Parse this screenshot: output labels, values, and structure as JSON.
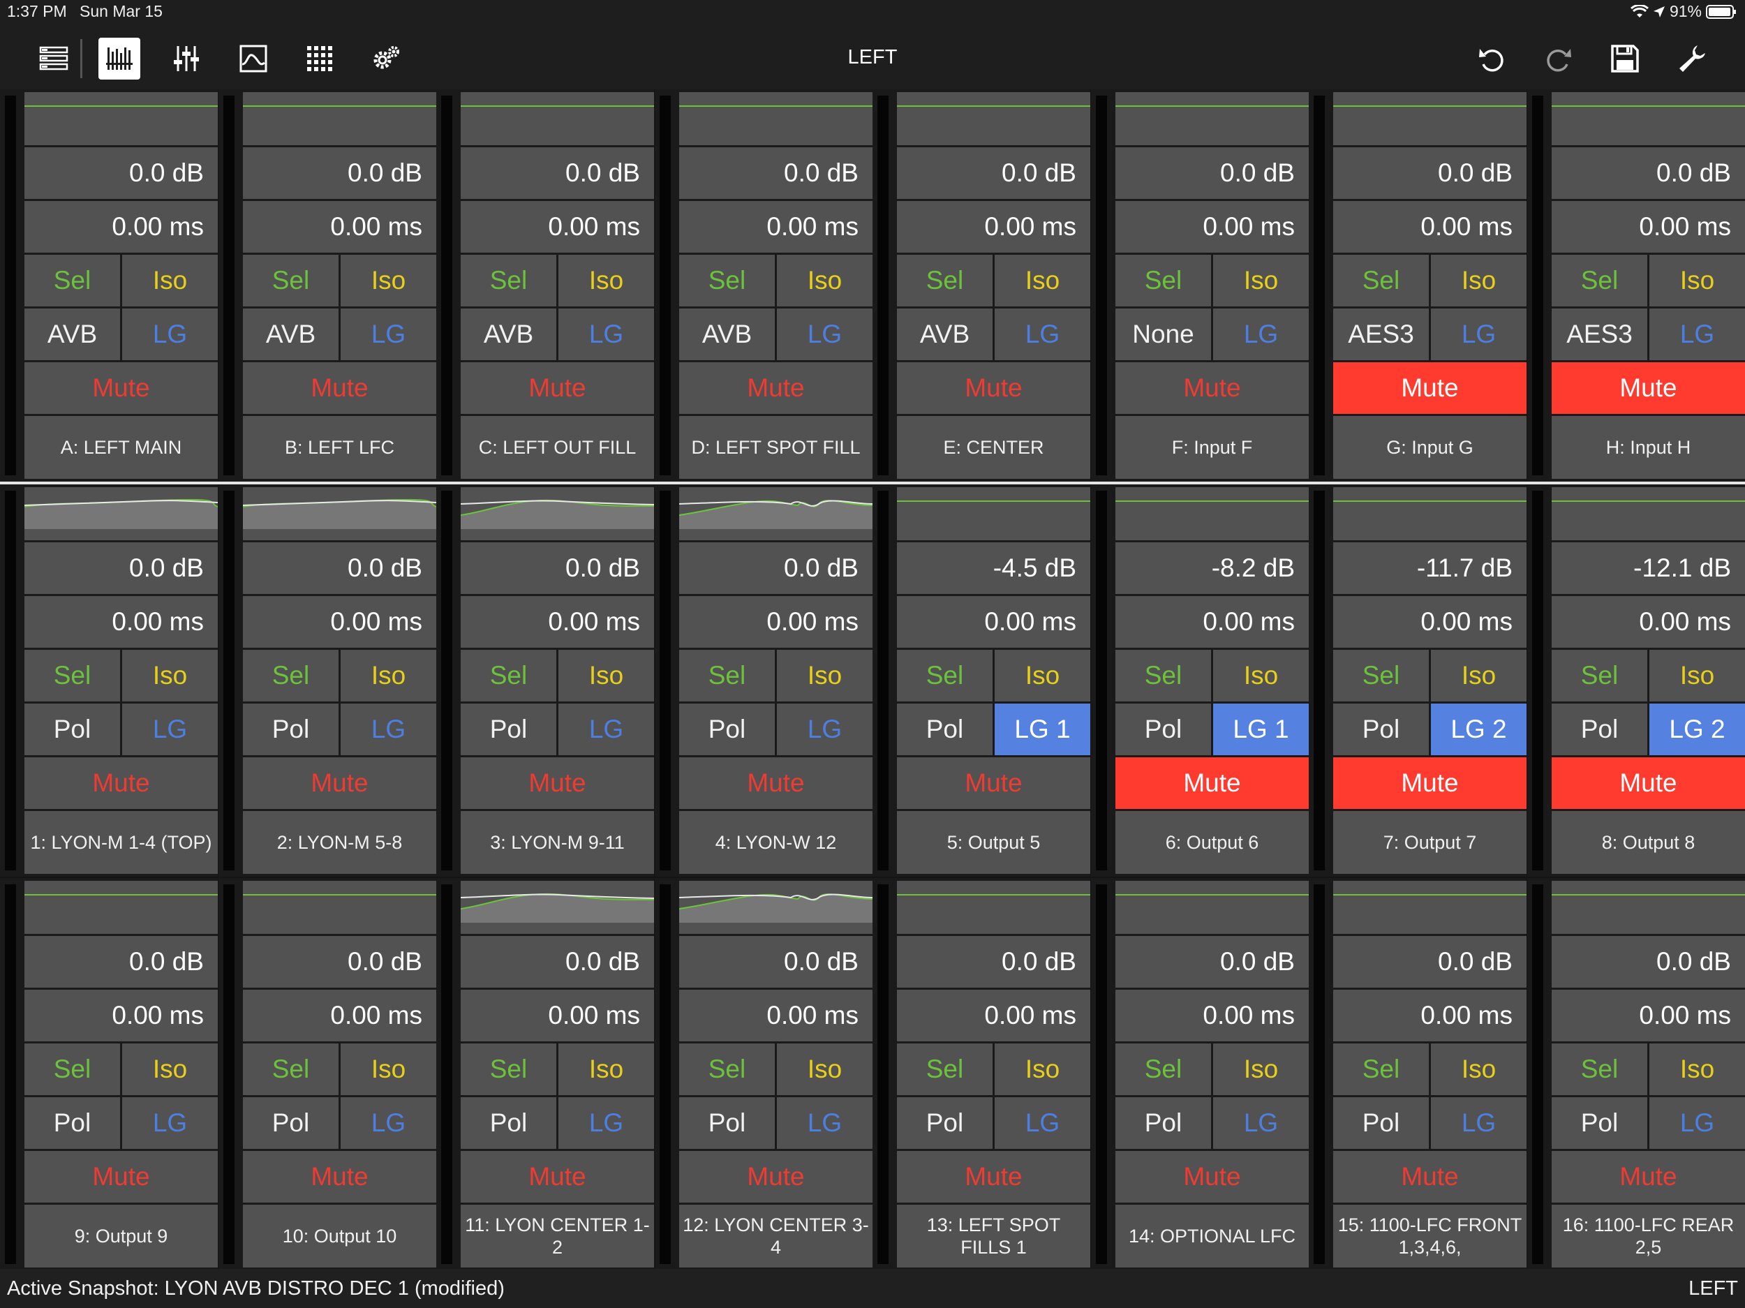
{
  "status_bar": {
    "time": "1:37 PM",
    "date": "Sun Mar 15",
    "battery": "91%"
  },
  "toolbar": {
    "title": "LEFT",
    "left_icons": [
      "list-view-icon",
      "channel-strips-icon",
      "faders-icon",
      "eq-curve-icon",
      "matrix-grid-icon",
      "settings-gears-icon"
    ],
    "right_icons": [
      "undo-icon",
      "redo-icon",
      "save-icon",
      "wrench-icon"
    ]
  },
  "labels": {
    "sel": "Sel",
    "iso": "Iso",
    "mute": "Mute"
  },
  "bands": [
    {
      "type": "input",
      "channels": [
        {
          "gain": "0.0 dB",
          "delay": "0.00 ms",
          "source": "AVB",
          "lg": "LG",
          "lg_on": false,
          "mute_on": false,
          "name": "A: LEFT MAIN",
          "eq": "flat"
        },
        {
          "gain": "0.0 dB",
          "delay": "0.00 ms",
          "source": "AVB",
          "lg": "LG",
          "lg_on": false,
          "mute_on": false,
          "name": "B: LEFT LFC",
          "eq": "flat"
        },
        {
          "gain": "0.0 dB",
          "delay": "0.00 ms",
          "source": "AVB",
          "lg": "LG",
          "lg_on": false,
          "mute_on": false,
          "name": "C: LEFT OUT FILL",
          "eq": "flat"
        },
        {
          "gain": "0.0 dB",
          "delay": "0.00 ms",
          "source": "AVB",
          "lg": "LG",
          "lg_on": false,
          "mute_on": false,
          "name": "D: LEFT SPOT FILL",
          "eq": "flat"
        },
        {
          "gain": "0.0 dB",
          "delay": "0.00 ms",
          "source": "AVB",
          "lg": "LG",
          "lg_on": false,
          "mute_on": false,
          "name": "E: CENTER",
          "eq": "flat"
        },
        {
          "gain": "0.0 dB",
          "delay": "0.00 ms",
          "source": "None",
          "lg": "LG",
          "lg_on": false,
          "mute_on": false,
          "name": "F: Input F",
          "eq": "flat"
        },
        {
          "gain": "0.0 dB",
          "delay": "0.00 ms",
          "source": "AES3",
          "lg": "LG",
          "lg_on": false,
          "mute_on": true,
          "name": "G: Input G",
          "eq": "flat"
        },
        {
          "gain": "0.0 dB",
          "delay": "0.00 ms",
          "source": "AES3",
          "lg": "LG",
          "lg_on": false,
          "mute_on": true,
          "name": "H: Input H",
          "eq": "flat"
        }
      ]
    },
    {
      "type": "output",
      "channels": [
        {
          "gain": "0.0 dB",
          "delay": "0.00 ms",
          "source": "Pol",
          "lg": "LG",
          "lg_on": false,
          "mute_on": false,
          "name": "1: LYON-M 1-4 (TOP)",
          "eq": "curve-a"
        },
        {
          "gain": "0.0 dB",
          "delay": "0.00 ms",
          "source": "Pol",
          "lg": "LG",
          "lg_on": false,
          "mute_on": false,
          "name": "2: LYON-M 5-8",
          "eq": "curve-a"
        },
        {
          "gain": "0.0 dB",
          "delay": "0.00 ms",
          "source": "Pol",
          "lg": "LG",
          "lg_on": false,
          "mute_on": false,
          "name": "3: LYON-M 9-11",
          "eq": "curve-b"
        },
        {
          "gain": "0.0 dB",
          "delay": "0.00 ms",
          "source": "Pol",
          "lg": "LG",
          "lg_on": false,
          "mute_on": false,
          "name": "4: LYON-W 12",
          "eq": "curve-c"
        },
        {
          "gain": "-4.5 dB",
          "delay": "0.00 ms",
          "source": "Pol",
          "lg": "LG 1",
          "lg_on": true,
          "mute_on": false,
          "name": "5: Output 5",
          "eq": "flat"
        },
        {
          "gain": "-8.2 dB",
          "delay": "0.00 ms",
          "source": "Pol",
          "lg": "LG 1",
          "lg_on": true,
          "mute_on": true,
          "name": "6: Output 6",
          "eq": "flat"
        },
        {
          "gain": "-11.7 dB",
          "delay": "0.00 ms",
          "source": "Pol",
          "lg": "LG 2",
          "lg_on": true,
          "mute_on": true,
          "name": "7: Output 7",
          "eq": "flat"
        },
        {
          "gain": "-12.1 dB",
          "delay": "0.00 ms",
          "source": "Pol",
          "lg": "LG 2",
          "lg_on": true,
          "mute_on": true,
          "name": "8: Output 8",
          "eq": "flat"
        }
      ]
    },
    {
      "type": "output",
      "channels": [
        {
          "gain": "0.0 dB",
          "delay": "0.00 ms",
          "source": "Pol",
          "lg": "LG",
          "lg_on": false,
          "mute_on": false,
          "name": "9: Output 9",
          "eq": "flat"
        },
        {
          "gain": "0.0 dB",
          "delay": "0.00 ms",
          "source": "Pol",
          "lg": "LG",
          "lg_on": false,
          "mute_on": false,
          "name": "10: Output 10",
          "eq": "flat"
        },
        {
          "gain": "0.0 dB",
          "delay": "0.00 ms",
          "source": "Pol",
          "lg": "LG",
          "lg_on": false,
          "mute_on": false,
          "name": "11: LYON CENTER 1-2",
          "eq": "curve-b"
        },
        {
          "gain": "0.0 dB",
          "delay": "0.00 ms",
          "source": "Pol",
          "lg": "LG",
          "lg_on": false,
          "mute_on": false,
          "name": "12: LYON CENTER 3-4",
          "eq": "curve-c"
        },
        {
          "gain": "0.0 dB",
          "delay": "0.00 ms",
          "source": "Pol",
          "lg": "LG",
          "lg_on": false,
          "mute_on": false,
          "name": "13: LEFT SPOT FILLS 1",
          "eq": "flat"
        },
        {
          "gain": "0.0 dB",
          "delay": "0.00 ms",
          "source": "Pol",
          "lg": "LG",
          "lg_on": false,
          "mute_on": false,
          "name": "14: OPTIONAL LFC",
          "eq": "flat"
        },
        {
          "gain": "0.0 dB",
          "delay": "0.00 ms",
          "source": "Pol",
          "lg": "LG",
          "lg_on": false,
          "mute_on": false,
          "name": "15: 1100-LFC FRONT 1,3,4,6,",
          "eq": "flat"
        },
        {
          "gain": "0.0 dB",
          "delay": "0.00 ms",
          "source": "Pol",
          "lg": "LG",
          "lg_on": false,
          "mute_on": false,
          "name": "16: 1100-LFC REAR 2,5",
          "eq": "flat"
        }
      ]
    }
  ],
  "footer": {
    "snapshot": "Active Snapshot: LYON AVB DISTRO DEC 1 (modified)",
    "right_label": "LEFT"
  },
  "colors": {
    "sel": "#6dc23c",
    "iso": "#e8d01a",
    "lg": "#4d7fe3",
    "lg_active": "#5582e0",
    "mute": "#f03b32",
    "mute_active": "#ff3b30",
    "cell": "#525252",
    "eq_line": "#6dc23c"
  }
}
